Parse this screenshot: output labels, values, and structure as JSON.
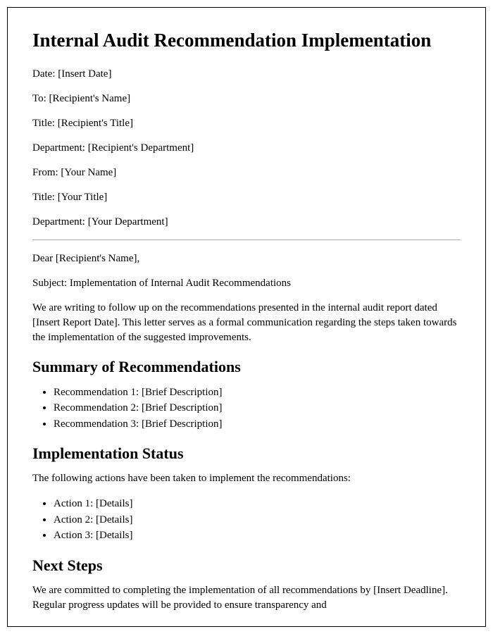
{
  "title": "Internal Audit Recommendation Implementation",
  "meta": {
    "date": "Date: [Insert Date]",
    "to": "To: [Recipient's Name]",
    "to_title": "Title: [Recipient's Title]",
    "to_dept": "Department: [Recipient's Department]",
    "from": "From: [Your Name]",
    "from_title": "Title: [Your Title]",
    "from_dept": "Department: [Your Department]"
  },
  "salutation": "Dear [Recipient's Name],",
  "subject": "Subject: Implementation of Internal Audit Recommendations",
  "intro": "We are writing to follow up on the recommendations presented in the internal audit report dated [Insert Report Date]. This letter serves as a formal communication regarding the steps taken towards the implementation of the suggested improvements.",
  "sections": {
    "summary_heading": "Summary of Recommendations",
    "summary_items": [
      "Recommendation 1: [Brief Description]",
      "Recommendation 2: [Brief Description]",
      "Recommendation 3: [Brief Description]"
    ],
    "status_heading": "Implementation Status",
    "status_intro": "The following actions have been taken to implement the recommendations:",
    "status_items": [
      "Action 1: [Details]",
      "Action 2: [Details]",
      "Action 3: [Details]"
    ],
    "next_heading": "Next Steps",
    "next_body": "We are committed to completing the implementation of all recommendations by [Insert Deadline]. Regular progress updates will be provided to ensure transparency and"
  }
}
